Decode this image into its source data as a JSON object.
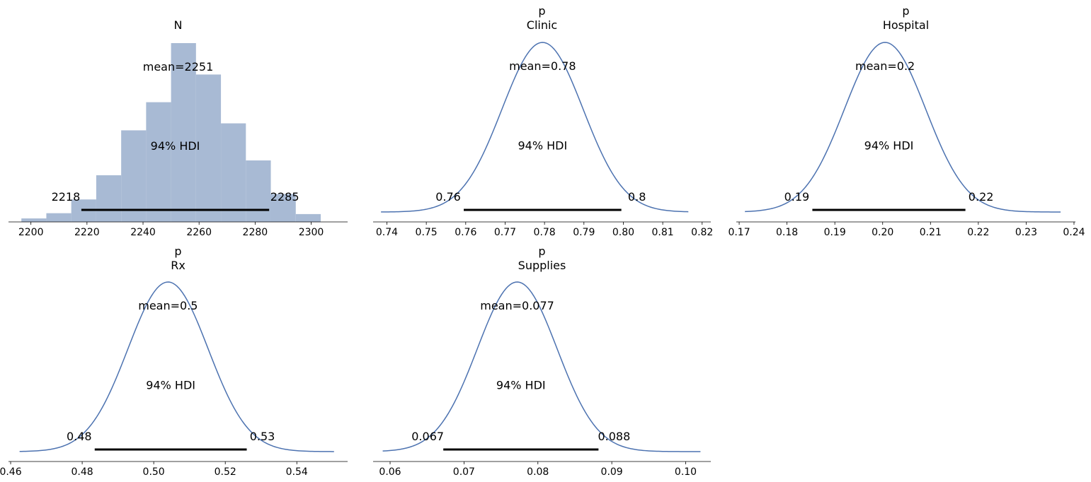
{
  "colors": {
    "curve": "#4c72b0",
    "hist": "#a8bad4",
    "hdi": "#000000"
  },
  "chart_data": [
    {
      "type": "bar",
      "titles": [
        "N"
      ],
      "mean_label": "mean=2251",
      "hdi_label": "94% HDI",
      "hdi": [
        2218,
        2285
      ],
      "hdi_labels": [
        "2218",
        "2285"
      ],
      "xlim": [
        2192,
        2313
      ],
      "ticks": [
        2200,
        2220,
        2240,
        2260,
        2280,
        2300
      ],
      "bins": [
        {
          "x0": 2196.6,
          "x1": 2205.5,
          "h": 0.016
        },
        {
          "x0": 2205.5,
          "x1": 2214.4,
          "h": 0.04
        },
        {
          "x0": 2214.4,
          "x1": 2223.3,
          "h": 0.103
        },
        {
          "x0": 2223.3,
          "x1": 2232.2,
          "h": 0.214
        },
        {
          "x0": 2232.2,
          "x1": 2241.1,
          "h": 0.42
        },
        {
          "x0": 2241.1,
          "x1": 2250.0,
          "h": 0.549
        },
        {
          "x0": 2250.0,
          "x1": 2258.9,
          "h": 0.82
        },
        {
          "x0": 2258.9,
          "x1": 2267.8,
          "h": 0.676
        },
        {
          "x0": 2267.8,
          "x1": 2276.7,
          "h": 0.452
        },
        {
          "x0": 2276.7,
          "x1": 2285.6,
          "h": 0.282
        },
        {
          "x0": 2285.6,
          "x1": 2294.5,
          "h": 0.128
        },
        {
          "x0": 2294.5,
          "x1": 2303.4,
          "h": 0.036
        }
      ]
    },
    {
      "type": "line",
      "titles": [
        "p",
        "Clinic"
      ],
      "mean_label": "mean=0.78",
      "hdi_label": "94% HDI",
      "hdi": [
        0.7595,
        0.7995
      ],
      "hdi_labels": [
        "0.76",
        "0.8"
      ],
      "xlim": [
        0.7365,
        0.8222
      ],
      "ticks": [
        0.74,
        0.75,
        0.76,
        0.77,
        0.78,
        0.79,
        0.8,
        0.81,
        0.82
      ],
      "tick_labels": [
        "0.74",
        "0.75",
        "0.76",
        "0.77",
        "0.78",
        "0.79",
        "0.80",
        "0.81",
        "0.82"
      ],
      "mean": 0.7795,
      "sd": 0.0103,
      "support": [
        0.7385,
        0.8165
      ]
    },
    {
      "type": "line",
      "titles": [
        "p",
        "Hospital"
      ],
      "mean_label": "mean=0.2",
      "hdi_label": "94% HDI",
      "hdi": [
        0.1853,
        0.2173
      ],
      "hdi_labels": [
        "0.19",
        "0.22"
      ],
      "xlim": [
        0.1694,
        0.2403
      ],
      "ticks": [
        0.17,
        0.18,
        0.19,
        0.2,
        0.21,
        0.22,
        0.23,
        0.24
      ],
      "tick_labels": [
        "0.17",
        "0.18",
        "0.19",
        "0.20",
        "0.21",
        "0.22",
        "0.23",
        "0.24"
      ],
      "mean": 0.2005,
      "sd": 0.0085,
      "support": [
        0.1712,
        0.2372
      ]
    },
    {
      "type": "line",
      "titles": [
        "p",
        "Rx"
      ],
      "mean_label": "mean=0.5",
      "hdi_label": "94% HDI",
      "hdi": [
        0.4835,
        0.526
      ],
      "hdi_labels": [
        "0.48",
        "0.53"
      ],
      "xlim": [
        0.4594,
        0.5542
      ],
      "ticks": [
        0.46,
        0.48,
        0.5,
        0.52,
        0.54
      ],
      "tick_labels": [
        "0.46",
        "0.48",
        "0.50",
        "0.52",
        "0.54"
      ],
      "mean": 0.504,
      "sd": 0.0112,
      "support": [
        0.4625,
        0.5504
      ]
    },
    {
      "type": "line",
      "titles": [
        "p",
        "Supplies"
      ],
      "mean_label": "mean=0.077",
      "hdi_label": "94% HDI",
      "hdi": [
        0.0672,
        0.0882
      ],
      "hdi_labels": [
        "0.067",
        "0.088"
      ],
      "xlim": [
        0.0577,
        0.1034
      ],
      "ticks": [
        0.06,
        0.07,
        0.08,
        0.09,
        0.1
      ],
      "tick_labels": [
        "0.06",
        "0.07",
        "0.08",
        "0.09",
        "0.10"
      ],
      "mean": 0.0772,
      "sd": 0.0054,
      "support": [
        0.059,
        0.102
      ]
    }
  ]
}
